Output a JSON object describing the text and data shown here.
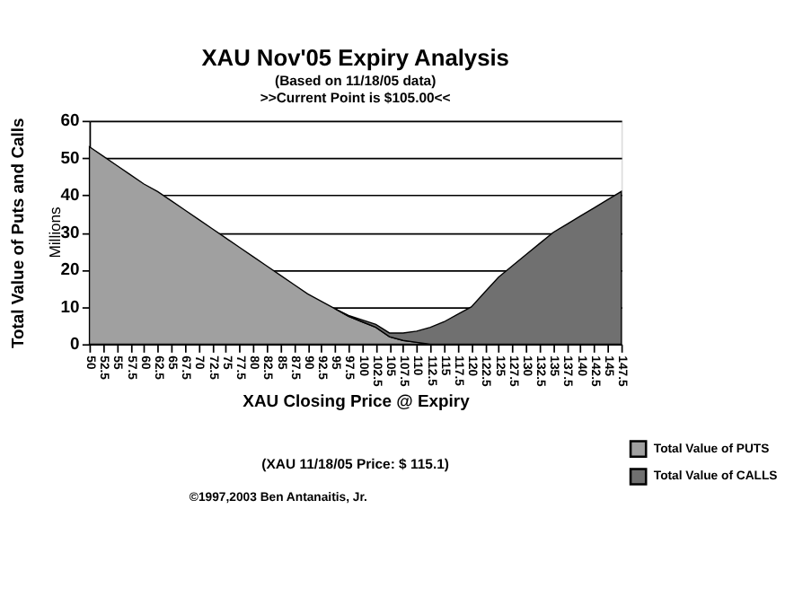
{
  "chart_data": {
    "type": "area",
    "stacked": true,
    "title": "XAU Nov'05 Expiry Analysis",
    "subtitle": [
      "(Based on 11/18/05 data)",
      ">>Current Point is $105.00<<"
    ],
    "xlabel": "XAU Closing Price @ Expiry",
    "ylabel": "Total Value of Puts and Calls",
    "annotations": [
      "Millions",
      "(XAU 11/18/05 Price: $ 115.1)",
      "©1997,2003 Ben Antanaitis, Jr."
    ],
    "categories": [
      "50",
      "52.5",
      "55",
      "57.5",
      "60",
      "62.5",
      "65",
      "67.5",
      "70",
      "72.5",
      "75",
      "77.5",
      "80",
      "82.5",
      "85",
      "87.5",
      "90",
      "92.5",
      "95",
      "97.5",
      "100",
      "102.5",
      "105",
      "107.5",
      "110",
      "112.5",
      "115",
      "117.5",
      "120",
      "122.5",
      "125",
      "127.5",
      "130",
      "132.5",
      "135",
      "137.5",
      "140",
      "142.5",
      "145",
      "147.5"
    ],
    "series": [
      {
        "name": "Total Value of PUTS",
        "color": "#a0a0a0",
        "values": [
          53,
          50.5,
          48,
          45.5,
          43,
          41,
          38.5,
          36,
          33.5,
          31,
          28.5,
          26,
          23.5,
          21,
          18.5,
          16,
          13.5,
          11.5,
          9.5,
          7.5,
          6,
          4.5,
          2,
          1,
          0.5,
          0,
          null,
          null,
          null,
          null,
          null,
          null,
          null,
          null,
          null,
          null,
          null,
          null,
          null,
          null
        ]
      },
      {
        "name": "Total Value of CALLS",
        "color": "#707070",
        "values": [
          null,
          null,
          null,
          null,
          null,
          null,
          null,
          null,
          null,
          null,
          null,
          null,
          null,
          null,
          null,
          null,
          null,
          null,
          0,
          0.2,
          0.5,
          0.8,
          1,
          2,
          3,
          4.5,
          6,
          8,
          10,
          14,
          18,
          21,
          24,
          27,
          30,
          32.2,
          34.4,
          36.6,
          38.8,
          41
        ]
      }
    ],
    "ylim": [
      0,
      60
    ],
    "yticks": [
      0,
      10,
      20,
      30,
      40,
      50,
      60
    ],
    "grid": "y",
    "legend": "right"
  }
}
